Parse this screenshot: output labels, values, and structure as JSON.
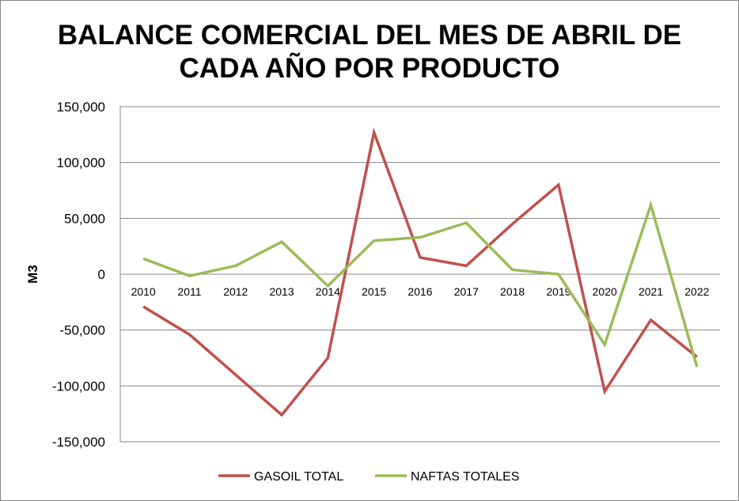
{
  "chart_data": {
    "type": "line",
    "title_lines": [
      "BALANCE COMERCIAL DEL MES DE ABRIL DE",
      "CADA AÑO POR PRODUCTO"
    ],
    "xlabel": "",
    "ylabel": "M3",
    "ylim": [
      -150000,
      150000
    ],
    "yticks": [
      150000,
      100000,
      50000,
      0,
      -50000,
      -100000,
      -150000
    ],
    "ytick_labels": [
      "150,000",
      "100,000",
      "50,000",
      "0",
      "-50,000",
      "-100,000",
      "-150,000"
    ],
    "grid": true,
    "legend_position": "bottom",
    "categories": [
      "2010",
      "2011",
      "2012",
      "2013",
      "2014",
      "2015",
      "2016",
      "2017",
      "2018",
      "2019",
      "2020",
      "2021",
      "2022"
    ],
    "series": [
      {
        "name": "GASOIL TOTAL",
        "color": "#C0504D",
        "values": [
          -29000,
          -54000,
          -90000,
          -126000,
          -75000,
          127000,
          15000,
          7500,
          45000,
          80000,
          -105000,
          -41000,
          -74000
        ]
      },
      {
        "name": "NAFTAS TOTALES",
        "color": "#9BBB59",
        "values": [
          14000,
          -1500,
          7500,
          29000,
          -10500,
          30000,
          33000,
          46000,
          4000,
          0,
          -63000,
          62000,
          -83000
        ]
      }
    ]
  }
}
